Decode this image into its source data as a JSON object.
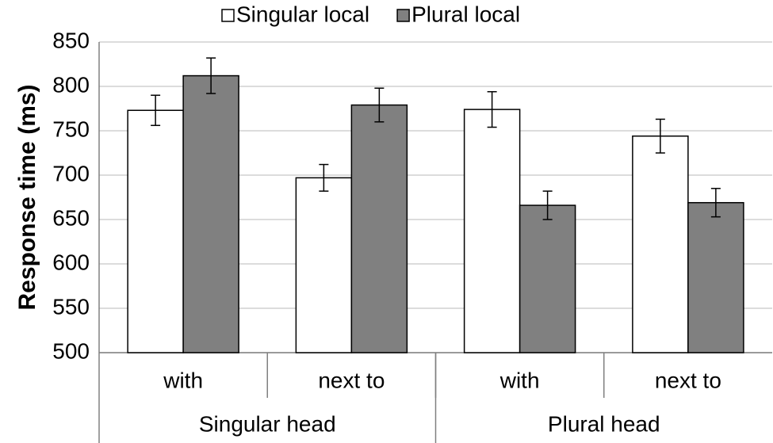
{
  "chart_data": {
    "type": "bar",
    "y_label": "Response time (ms)",
    "categories": [
      "with",
      "next to",
      "with",
      "next to"
    ],
    "category_groups": [
      "Singular head",
      "Plural head"
    ],
    "series": [
      {
        "name": "Singular local",
        "color": "#ffffff",
        "values": [
          773,
          697,
          774,
          744
        ],
        "errors": [
          17,
          15,
          20,
          19
        ]
      },
      {
        "name": "Plural local",
        "color": "#808080",
        "values": [
          812,
          779,
          666,
          669
        ],
        "errors": [
          20,
          19,
          16,
          16
        ]
      }
    ],
    "ylim": [
      500,
      850
    ],
    "yticks": [
      500,
      550,
      600,
      650,
      700,
      750,
      800,
      850
    ],
    "grid": true,
    "legend": "top"
  }
}
